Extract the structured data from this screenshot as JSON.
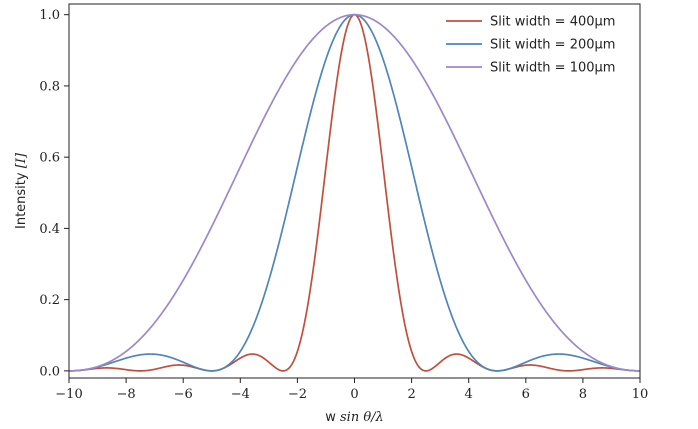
{
  "chart_data": {
    "type": "line",
    "xlabel_text": "w",
    "xlabel_math": "sin θ/λ",
    "ylabel_text": "Intensity",
    "ylabel_math": "[I]",
    "xlim": [
      -10,
      10
    ],
    "ylim": [
      -0.02,
      1.03
    ],
    "xticks": [
      -10,
      -8,
      -6,
      -4,
      -2,
      0,
      2,
      4,
      6,
      8,
      10
    ],
    "xtick_labels": [
      "−10",
      "−8",
      "−6",
      "−4",
      "−2",
      "0",
      "2",
      "4",
      "6",
      "8",
      "10"
    ],
    "yticks": [
      0.0,
      0.2,
      0.4,
      0.6,
      0.8,
      1.0
    ],
    "ytick_labels": [
      "0.0",
      "0.2",
      "0.4",
      "0.6",
      "0.8",
      "1.0"
    ],
    "grid": false,
    "legend_position": "top-right",
    "series": [
      {
        "name": "Slit width = 400μm",
        "color": "#c0503d",
        "function": "sinc_squared",
        "zero_spacing": 2.5
      },
      {
        "name": "Slit width = 200μm",
        "color": "#4e86b8",
        "function": "sinc_squared",
        "zero_spacing": 5
      },
      {
        "name": "Slit width = 100μm",
        "color": "#9b88cc",
        "function": "sinc_squared",
        "zero_spacing": 10
      }
    ]
  }
}
